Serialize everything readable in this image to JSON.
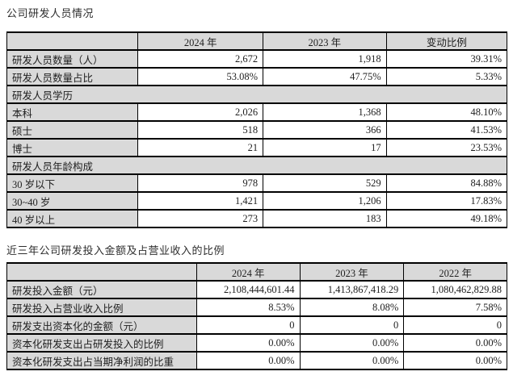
{
  "page": {
    "title1": "公司研发人员情况",
    "title2": "近三年公司研发投入金额及占营业收入的比例"
  },
  "colors": {
    "header_fill": "#d9d9d9",
    "border": "#000000",
    "text": "#1f1f1f",
    "background": "#ffffff"
  },
  "table1": {
    "headers": [
      "",
      "2024 年",
      "2023 年",
      "变动比例"
    ],
    "rows": [
      {
        "type": "data",
        "label": "研发人员数量（人）",
        "values": [
          "2,672",
          "1,918",
          "39.31%"
        ]
      },
      {
        "type": "data",
        "label": "研发人员数量占比",
        "values": [
          "53.08%",
          "47.75%",
          "5.33%"
        ]
      },
      {
        "type": "section",
        "label": "研发人员学历"
      },
      {
        "type": "data",
        "label": "本科",
        "values": [
          "2,026",
          "1,368",
          "48.10%"
        ]
      },
      {
        "type": "data",
        "label": "硕士",
        "values": [
          "518",
          "366",
          "41.53%"
        ]
      },
      {
        "type": "data",
        "label": "博士",
        "values": [
          "21",
          "17",
          "23.53%"
        ]
      },
      {
        "type": "section",
        "label": "研发人员年龄构成"
      },
      {
        "type": "data",
        "label": "30 岁以下",
        "values": [
          "978",
          "529",
          "84.88%"
        ]
      },
      {
        "type": "data",
        "label": "30~40 岁",
        "values": [
          "1,421",
          "1,206",
          "17.83%"
        ]
      },
      {
        "type": "data",
        "label": "40 岁以上",
        "values": [
          "273",
          "183",
          "49.18%"
        ]
      }
    ]
  },
  "table2": {
    "headers": [
      "",
      "2024 年",
      "2023 年",
      "2022 年"
    ],
    "rows": [
      {
        "type": "data",
        "label": "研发投入金额（元）",
        "values": [
          "2,108,444,601.44",
          "1,413,867,418.29",
          "1,080,462,829.88"
        ]
      },
      {
        "type": "data",
        "label": "研发投入占营业收入比例",
        "values": [
          "8.53%",
          "8.08%",
          "7.58%"
        ]
      },
      {
        "type": "data",
        "label": "研发支出资本化的金额（元）",
        "values": [
          "0",
          "0",
          "0"
        ]
      },
      {
        "type": "data",
        "label": "资本化研发支出占研发投入的比例",
        "values": [
          "0.00%",
          "0.00%",
          "0.00%"
        ]
      },
      {
        "type": "data",
        "label": "资本化研发支出占当期净利润的比重",
        "values": [
          "0.00%",
          "0.00%",
          "0.00%"
        ]
      }
    ]
  }
}
